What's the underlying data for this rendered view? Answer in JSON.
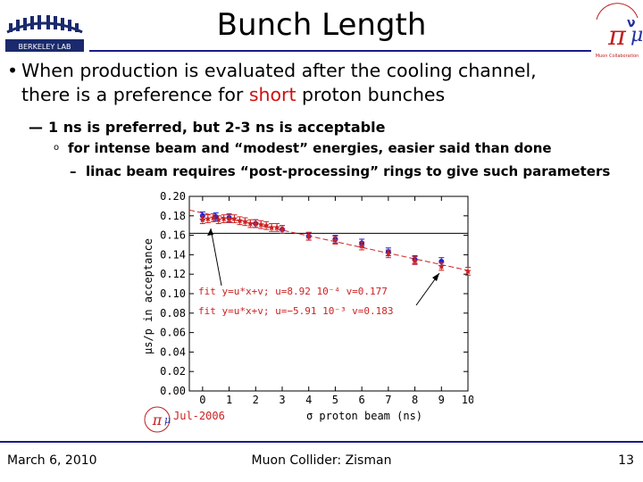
{
  "slide": {
    "title": "Bunch Length",
    "bullet1_part1": "When production is evaluated after the cooling channel,",
    "bullet1_part2": "there is a preference for ",
    "bullet1_highlight": "short",
    "bullet1_part3": " proton bunches",
    "bullet2_dash": "—",
    "bullet2": "1 ns is preferred, but 2-3 ns is acceptable",
    "bullet3_marker": "o",
    "bullet3": "for intense beam and “modest” energies, easier said than done",
    "bullet4_dash": "–",
    "bullet4": "linac beam requires “post-processing” rings to give such parameters",
    "logo_left_text": "BERKELEY LAB",
    "logo_right_text": "Muon Collaboration",
    "footer_date": "March 6, 2010",
    "footer_center": "Muon Collider: Zisman",
    "footer_page": "13",
    "accent_color": "#1a1a8c",
    "highlight_color": "#d01010"
  },
  "chart_data": {
    "type": "scatter",
    "xlabel": "σ proton beam (ns)",
    "ylabel": "μs/p in acceptance",
    "xlim": [
      -0.5,
      10
    ],
    "ylim": [
      0.0,
      0.2
    ],
    "xticks": [
      "0",
      "1",
      "2",
      "3",
      "4",
      "5",
      "6",
      "7",
      "8",
      "9",
      "10"
    ],
    "yticks": [
      "0.00",
      "0.02",
      "0.04",
      "0.06",
      "0.08",
      "0.10",
      "0.12",
      "0.14",
      "0.16",
      "0.18",
      "0.20"
    ],
    "reference_line_y": 0.162,
    "series": [
      {
        "color": "#2222cc",
        "marker": "circle",
        "x": [
          0,
          0.5,
          1,
          2,
          3,
          4,
          5,
          6,
          7,
          8,
          9
        ],
        "y": [
          0.18,
          0.179,
          0.178,
          0.172,
          0.166,
          0.159,
          0.156,
          0.152,
          0.143,
          0.135,
          0.133
        ],
        "err": [
          0.004,
          0.004,
          0.004,
          0.004,
          0.004,
          0.004,
          0.004,
          0.004,
          0.004,
          0.004,
          0.004
        ],
        "fit_label": "fit y=u*x+v; u=8.92 10⁻⁴ v=0.177"
      },
      {
        "color": "#cc2222",
        "marker": "star",
        "x": [
          0,
          0.2,
          0.4,
          0.6,
          0.8,
          1.0,
          1.2,
          1.4,
          1.6,
          1.8,
          2.0,
          2.2,
          2.4,
          2.6,
          2.8,
          3.0,
          4.0,
          5.0,
          6.0,
          7.0,
          8.0,
          9.0,
          10.0
        ],
        "y": [
          0.176,
          0.177,
          0.178,
          0.176,
          0.177,
          0.177,
          0.177,
          0.175,
          0.174,
          0.172,
          0.172,
          0.171,
          0.17,
          0.168,
          0.168,
          0.166,
          0.159,
          0.155,
          0.149,
          0.141,
          0.134,
          0.128,
          0.123
        ],
        "err": [
          0.004,
          0.004,
          0.004,
          0.004,
          0.004,
          0.004,
          0.004,
          0.004,
          0.004,
          0.004,
          0.004,
          0.004,
          0.004,
          0.004,
          0.004,
          0.004,
          0.004,
          0.004,
          0.004,
          0.004,
          0.004,
          0.004,
          0.004
        ],
        "fit_label": "fit y=u*x+v; u=−5.91 10⁻³ v=0.183",
        "fit_u": -0.00591,
        "fit_v": 0.183
      }
    ],
    "date_stamp": "Jul-2006"
  }
}
